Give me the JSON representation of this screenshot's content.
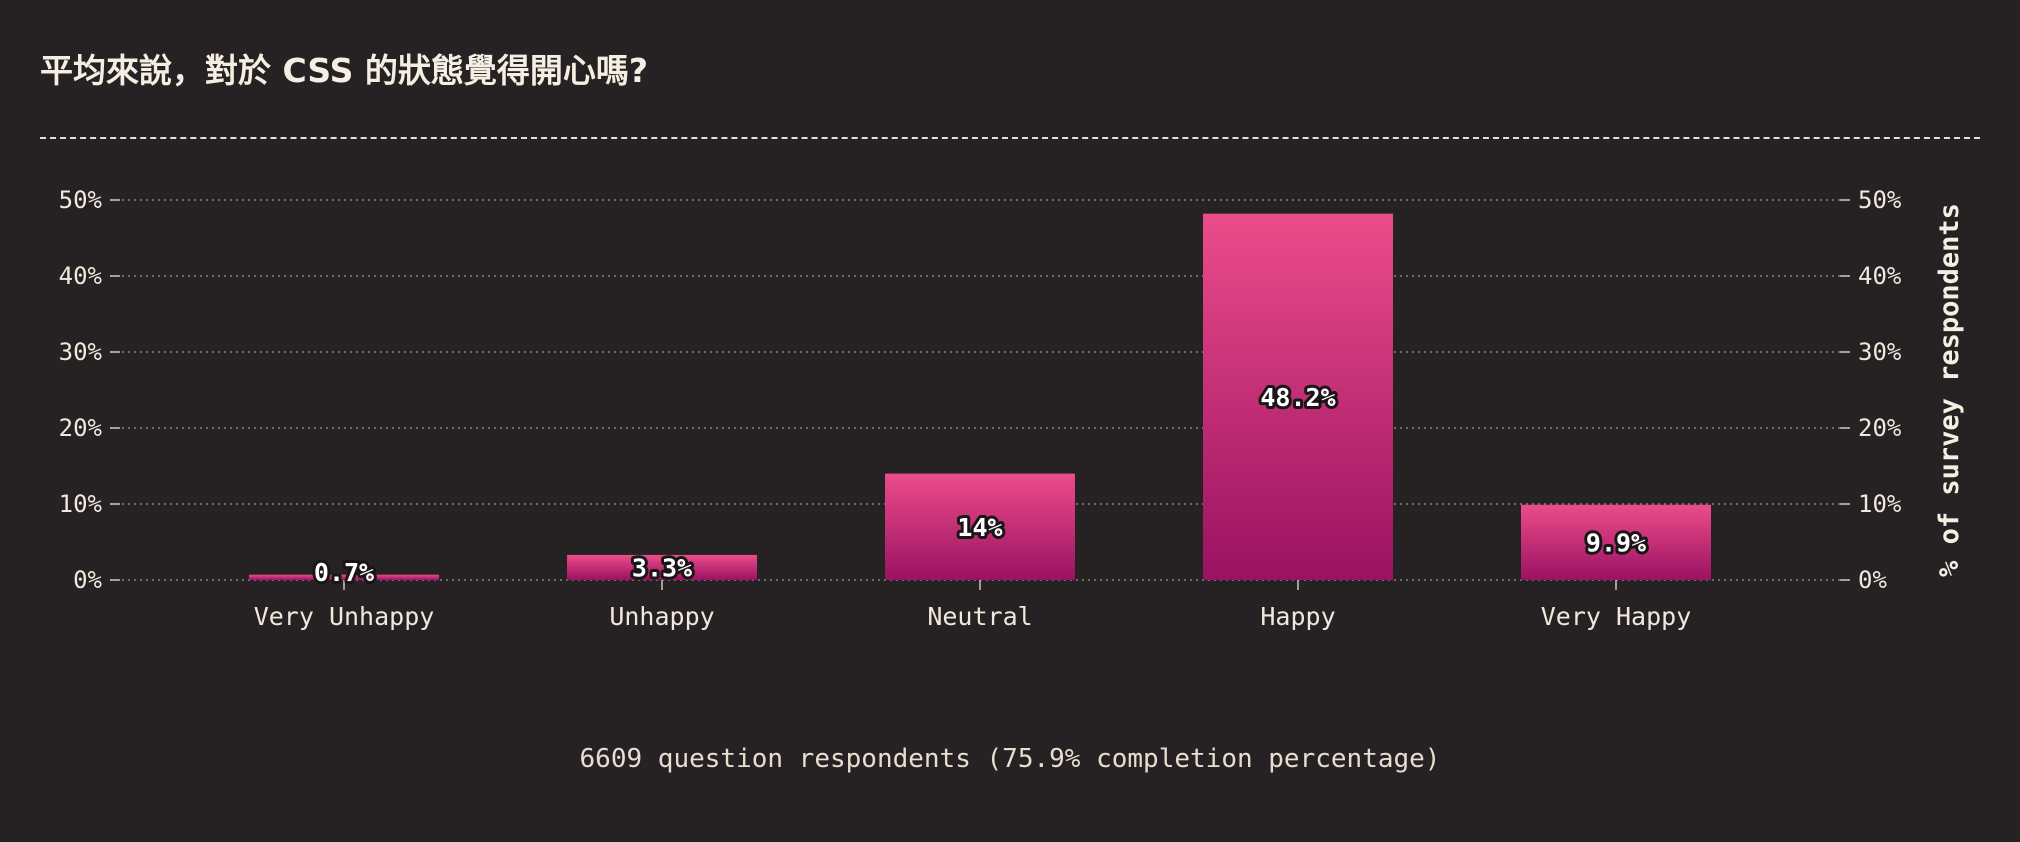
{
  "title": "平均來說，對於 CSS 的狀態覺得開心嗎?",
  "footer": "6609 question respondents (75.9% completion percentage)",
  "colors": {
    "background": "#262224",
    "bar_top": "#ec4c8a",
    "bar_bottom": "#9a1262",
    "text": "#f0e8dc"
  },
  "chart_data": {
    "type": "bar",
    "categories": [
      "Very Unhappy",
      "Unhappy",
      "Neutral",
      "Happy",
      "Very Happy"
    ],
    "values": [
      0.7,
      3.3,
      14,
      48.2,
      9.9
    ],
    "value_labels": [
      "0.7%",
      "3.3%",
      "14%",
      "48.2%",
      "9.9%"
    ],
    "ylabel": "% of survey respondents",
    "ylim": [
      0,
      50
    ],
    "yticks": [
      0,
      10,
      20,
      30,
      40,
      50
    ],
    "ytick_labels": [
      "0%",
      "10%",
      "20%",
      "30%",
      "40%",
      "50%"
    ],
    "grid": true,
    "axis_sides": [
      "left",
      "right"
    ]
  }
}
